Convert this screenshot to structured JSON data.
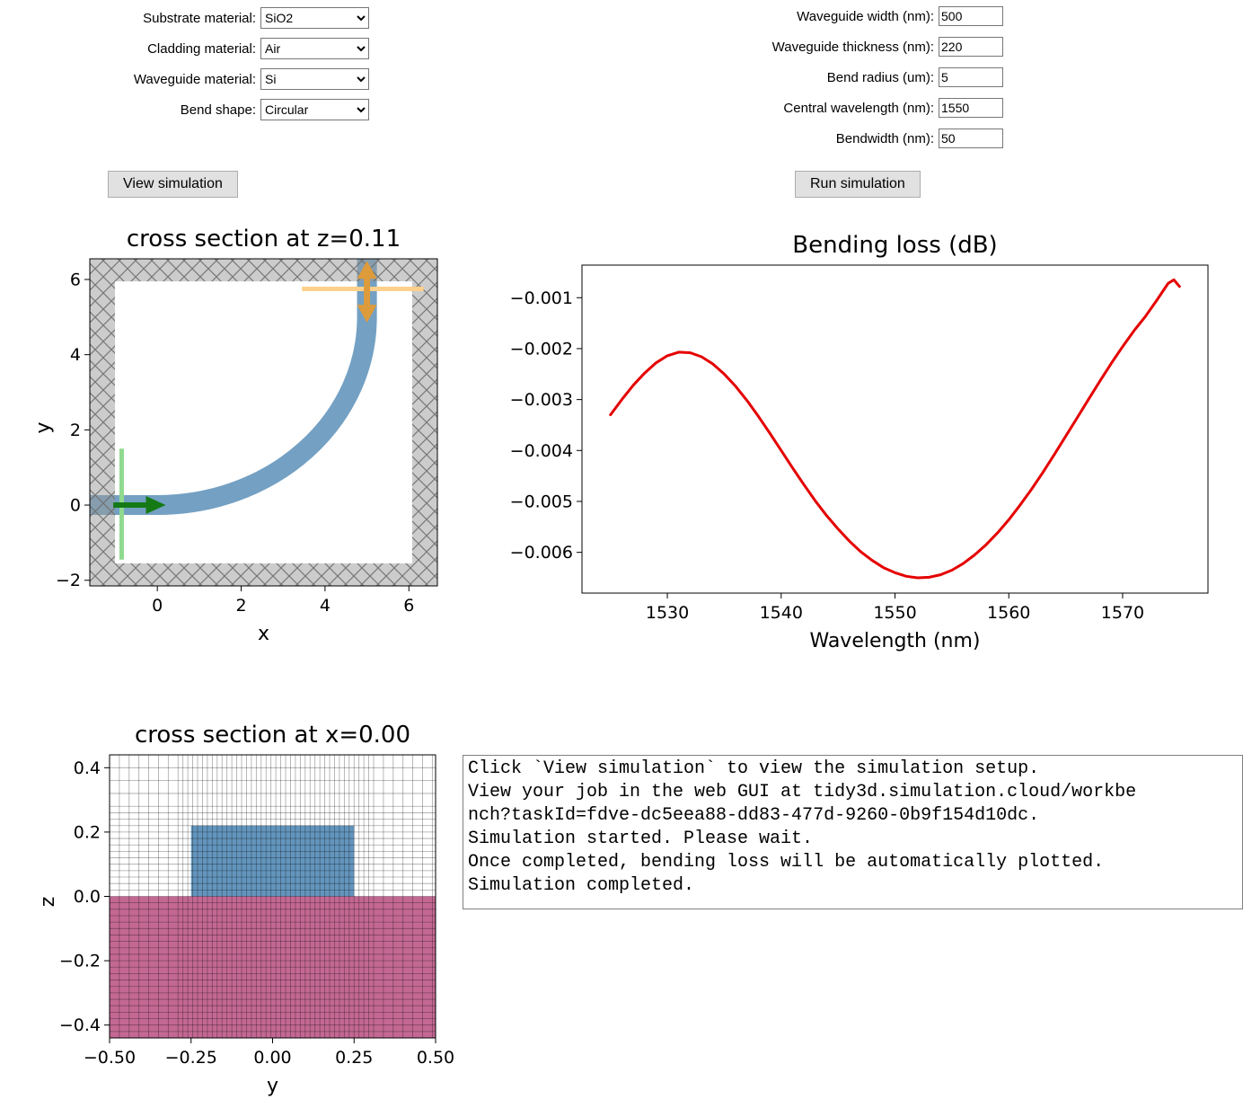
{
  "left_form": {
    "rows": [
      {
        "label": "Substrate material:",
        "value": "SiO2"
      },
      {
        "label": "Cladding material:",
        "value": "Air"
      },
      {
        "label": "Waveguide material:",
        "value": "Si"
      },
      {
        "label": "Bend shape:",
        "value": "Circular"
      }
    ],
    "view_button": "View simulation"
  },
  "right_form": {
    "rows": [
      {
        "label": "Waveguide width (nm):",
        "value": "500"
      },
      {
        "label": "Waveguide thickness (nm):",
        "value": "220"
      },
      {
        "label": "Bend radius (um):",
        "value": "5"
      },
      {
        "label": "Central wavelength (nm):",
        "value": "1550"
      },
      {
        "label": "Bendwidth (nm):",
        "value": "50"
      }
    ],
    "run_button": "Run simulation"
  },
  "log": {
    "text": "Click `View simulation` to view the simulation setup.\nView your job in the web GUI at tidy3d.simulation.cloud/workbe\nnch?taskId=fdve-dc5eea88-dd83-477d-9260-0b9f154d10dc.\nSimulation started. Please wait.\nOnce completed, bending loss will be automatically plotted.\nSimulation completed."
  },
  "chart_data": [
    {
      "type": "diagram",
      "name": "bend-top-view",
      "title": "cross section at z=0.11",
      "xlabel": "x",
      "ylabel": "y",
      "xlim": [
        -1.61,
        6.68
      ],
      "ylim": [
        -2.15,
        6.55
      ],
      "xticks": [
        0,
        2,
        4,
        6
      ],
      "xtick_labels": [
        "0",
        "2",
        "4",
        "6"
      ],
      "yticks": [
        -2,
        0,
        2,
        4,
        6
      ],
      "ytick_labels": [
        "−2",
        "0",
        "2",
        "4",
        "6"
      ],
      "pml_thickness": 0.6,
      "pml_color": "#9a9a9a",
      "waveguide": {
        "width": 0.5,
        "bend_radius": 5,
        "color": "#5b8fb9"
      },
      "source": {
        "x": -0.85,
        "y_span": [
          -1.45,
          1.5
        ],
        "line_color": "#90da90",
        "arrow": {
          "from_x": -1.05,
          "to_x": 0.2,
          "y": 0
        },
        "arrow_color": "#157a15"
      },
      "monitor": {
        "y": 5.75,
        "x_span": [
          3.45,
          6.35
        ],
        "line_color": "#ffd08a",
        "arrow_x": 5,
        "arrow_y_span": [
          4.85,
          6.5
        ],
        "arrow_color": "#dd9b3c"
      }
    },
    {
      "type": "line",
      "title": "Bending loss (dB)",
      "xlabel": "Wavelength (nm)",
      "ylabel": "",
      "xlim": [
        1522.5,
        1577.5
      ],
      "ylim": [
        -0.0068,
        -0.00036
      ],
      "xticks": [
        1530,
        1540,
        1550,
        1560,
        1570
      ],
      "xtick_labels": [
        "1530",
        "1540",
        "1550",
        "1560",
        "1570"
      ],
      "yticks": [
        -0.001,
        -0.002,
        -0.003,
        -0.004,
        -0.005,
        -0.006
      ],
      "ytick_labels": [
        "−0.001",
        "−0.002",
        "−0.003",
        "−0.004",
        "−0.005",
        "−0.006"
      ],
      "grid": false,
      "series": [
        {
          "name": "bending loss",
          "color": "#e50000",
          "x": [
            1525,
            1526,
            1527,
            1528,
            1529,
            1530,
            1531,
            1532,
            1533,
            1534,
            1535,
            1536,
            1537,
            1538,
            1539,
            1540,
            1541,
            1542,
            1543,
            1544,
            1545,
            1546,
            1547,
            1548,
            1549,
            1550,
            1551,
            1552,
            1553,
            1554,
            1555,
            1556,
            1557,
            1558,
            1559,
            1560,
            1561,
            1562,
            1563,
            1564,
            1565,
            1566,
            1567,
            1568,
            1569,
            1570,
            1571,
            1572,
            1573,
            1574,
            1574.5,
            1575
          ],
          "y": [
            -0.0033,
            -0.003,
            -0.00272,
            -0.00248,
            -0.00228,
            -0.00214,
            -0.00207,
            -0.00208,
            -0.00216,
            -0.0023,
            -0.0025,
            -0.00274,
            -0.00302,
            -0.00333,
            -0.00366,
            -0.004,
            -0.00434,
            -0.00467,
            -0.00499,
            -0.00528,
            -0.00554,
            -0.00578,
            -0.00599,
            -0.00616,
            -0.0063,
            -0.0064,
            -0.00647,
            -0.0065,
            -0.00649,
            -0.00644,
            -0.00635,
            -0.00622,
            -0.00605,
            -0.00585,
            -0.00562,
            -0.00536,
            -0.00507,
            -0.00476,
            -0.00443,
            -0.00408,
            -0.00372,
            -0.00336,
            -0.003,
            -0.00264,
            -0.00229,
            -0.00196,
            -0.00165,
            -0.00137,
            -0.00105,
            -0.00072,
            -0.00065,
            -0.00078
          ]
        }
      ]
    },
    {
      "type": "structure-mesh",
      "title": "cross section at x=0.00",
      "xlabel": "y",
      "ylabel": "z",
      "xlim": [
        -0.5,
        0.5
      ],
      "ylim": [
        -0.44,
        0.44
      ],
      "xticks": [
        -0.5,
        -0.25,
        0,
        0.25,
        0.5
      ],
      "xtick_labels": [
        "−0.50",
        "−0.25",
        "0.00",
        "0.25",
        "0.50"
      ],
      "yticks": [
        -0.4,
        -0.2,
        0,
        0.2,
        0.4
      ],
      "ytick_labels": [
        "−0.4",
        "−0.2",
        "0.0",
        "0.2",
        "0.4"
      ],
      "substrate": {
        "z_range": [
          -0.44,
          0
        ],
        "color": "#c0608d"
      },
      "waveguide": {
        "y_range": [
          -0.25,
          0.25
        ],
        "z_range": [
          0,
          0.22
        ],
        "color": "#5b8fb9"
      },
      "mesh": {
        "x_fine_step": 0.015,
        "x_coarse_step": 0.03,
        "x_fine_range": [
          -0.3,
          0.3
        ],
        "z_step": 0.02,
        "z_coarse_step": 0.04,
        "z_split": 0.28,
        "color": "rgba(0,0,0,0.35)"
      }
    }
  ]
}
